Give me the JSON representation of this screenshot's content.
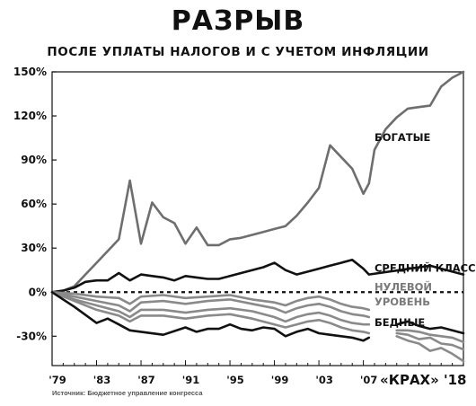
{
  "chart_data": {
    "type": "line",
    "title": "РАЗРЫВ",
    "subtitle": "ПОСЛЕ УПЛАТЫ НАЛОГОВ И С УЧЕТОМ ИНФЛЯЦИИ",
    "xlabel": "",
    "ylabel": "",
    "xlim": [
      1979,
      2016
    ],
    "ylim": [
      -50,
      150
    ],
    "y_ticks": [
      150,
      120,
      90,
      60,
      30,
      0,
      -30
    ],
    "y_tick_labels": [
      "150%",
      "120%",
      "90%",
      "60%",
      "30%",
      "0%",
      "-30%"
    ],
    "x_ticks": [
      1979,
      1983,
      1987,
      1991,
      1995,
      1999,
      2003,
      2007
    ],
    "x_tick_labels": [
      "'79",
      "'83",
      "'87",
      "'91",
      "'95",
      "'99",
      "'03",
      "'07"
    ],
    "zero_line": "dashed",
    "grid": false,
    "source": "Источник: Бюджетное управление конгресса",
    "credit": "«КРАХ» '18",
    "series": [
      {
        "name": "БОГАТЫЕ",
        "color": "#6e6e6e",
        "x": [
          1979,
          1980,
          1981,
          1982,
          1983,
          1984,
          1985,
          1986,
          1987,
          1988,
          1989,
          1990,
          1991,
          1992,
          1993,
          1994,
          1995,
          1996,
          1997,
          1998,
          1999,
          2000,
          2001,
          2002,
          2003,
          2004,
          2005,
          2006,
          2007,
          2007.5,
          2008,
          2009,
          2010,
          2011,
          2012,
          2013,
          2014,
          2015,
          2016
        ],
        "y": [
          0,
          1,
          4,
          12,
          20,
          28,
          36,
          76,
          33,
          61,
          51,
          47,
          33,
          44,
          32,
          32,
          36,
          37,
          39,
          41,
          43,
          45,
          52,
          61,
          71,
          100,
          92,
          84,
          67,
          74,
          97,
          111,
          119,
          125,
          126,
          127,
          140,
          146,
          150
        ]
      },
      {
        "name": "СРЕДНИЙ КЛАСС",
        "color": "#111111",
        "x": [
          1979,
          1980,
          1981,
          1982,
          1983,
          1984,
          1985,
          1986,
          1987,
          1988,
          1989,
          1990,
          1991,
          1992,
          1993,
          1994,
          1995,
          1996,
          1997,
          1998,
          1999,
          2000,
          2001,
          2002,
          2003,
          2004,
          2005,
          2006,
          2007,
          2007.5,
          2013,
          2014,
          2015,
          2016
        ],
        "y": [
          0,
          1,
          3,
          7,
          8,
          8,
          13,
          8,
          12,
          11,
          10,
          8,
          11,
          10,
          9,
          9,
          11,
          13,
          15,
          17,
          20,
          15,
          12,
          14,
          16,
          18,
          20,
          22,
          16,
          12,
          18,
          16,
          14,
          12
        ]
      },
      {
        "name": "НУЛЕВОЙ УРОВЕНЬ",
        "color": "#8a8a8a",
        "x": [
          1979,
          1981,
          1983,
          1985,
          1986,
          1987,
          1989,
          1991,
          1993,
          1995,
          1997,
          1999,
          2000,
          2001,
          2002,
          2003,
          2004,
          2005,
          2006,
          2007,
          2007.5
        ],
        "y": [
          0,
          -1,
          -3,
          -4,
          -8,
          -3,
          -2,
          -4,
          -3,
          -2,
          -5,
          -7,
          -9,
          -6,
          -4,
          -3,
          -5,
          -8,
          -10,
          -11,
          -12
        ]
      },
      {
        "name": "НУЛЕВОЙ УРОВЕНЬ (2)",
        "color": "#8a8a8a",
        "x": [
          1979,
          1981,
          1983,
          1985,
          1986,
          1987,
          1989,
          1991,
          1993,
          1995,
          1997,
          1999,
          2000,
          2001,
          2002,
          2003,
          2004,
          2005,
          2006,
          2007,
          2007.5
        ],
        "y": [
          0,
          -3,
          -6,
          -9,
          -13,
          -7,
          -6,
          -8,
          -6,
          -5,
          -8,
          -11,
          -14,
          -11,
          -9,
          -8,
          -10,
          -13,
          -15,
          -16,
          -17
        ]
      },
      {
        "name": "НУЛЕВОЙ УРОВЕНЬ (3)",
        "color": "#8a8a8a",
        "x": [
          1979,
          1981,
          1983,
          1985,
          1986,
          1987,
          1989,
          1991,
          1993,
          1995,
          1997,
          1999,
          2000,
          2001,
          2002,
          2003,
          2004,
          2005,
          2006,
          2007,
          2007.5
        ],
        "y": [
          0,
          -5,
          -9,
          -13,
          -17,
          -12,
          -12,
          -14,
          -12,
          -11,
          -13,
          -17,
          -20,
          -17,
          -15,
          -14,
          -16,
          -19,
          -21,
          -22,
          -22
        ]
      },
      {
        "name": "БЕДНЫЕ",
        "color": "#8a8a8a",
        "x": [
          1979,
          1981,
          1983,
          1985,
          1986,
          1987,
          1989,
          1991,
          1993,
          1995,
          1997,
          1999,
          2000,
          2001,
          2002,
          2003,
          2004,
          2005,
          2006,
          2007,
          2007.5
        ],
        "y": [
          0,
          -6,
          -12,
          -16,
          -20,
          -16,
          -16,
          -18,
          -16,
          -15,
          -18,
          -22,
          -24,
          -22,
          -20,
          -19,
          -21,
          -24,
          -26,
          -27,
          -28
        ]
      },
      {
        "name": "БЕДНЫЕ (2)",
        "color": "#111111",
        "x": [
          1979,
          1981,
          1983,
          1984,
          1985,
          1986,
          1987,
          1989,
          1991,
          1992,
          1993,
          1994,
          1995,
          1996,
          1997,
          1998,
          1999,
          2000,
          2001,
          2002,
          2003,
          2004,
          2005,
          2006,
          2007,
          2007.5
        ],
        "y": [
          0,
          -10,
          -21,
          -18,
          -22,
          -26,
          -27,
          -29,
          -24,
          -27,
          -25,
          -25,
          -22,
          -25,
          -26,
          -24,
          -25,
          -30,
          -27,
          -25,
          -28,
          -29,
          -30,
          -31,
          -33,
          -31
        ]
      },
      {
        "name": "right-1",
        "color": "#111111",
        "x": [
          2010,
          2011,
          2012,
          2013,
          2014,
          2015,
          2016
        ],
        "y": [
          -22,
          -20,
          -23,
          -25,
          -24,
          -26,
          -28
        ]
      },
      {
        "name": "right-2",
        "color": "#8a8a8a",
        "x": [
          2010,
          2011,
          2012,
          2013,
          2014,
          2015,
          2016
        ],
        "y": [
          -26,
          -26,
          -27,
          -29,
          -30,
          -31,
          -34
        ]
      },
      {
        "name": "right-3",
        "color": "#8a8a8a",
        "x": [
          2010,
          2011,
          2012,
          2013,
          2014,
          2015,
          2016
        ],
        "y": [
          -28,
          -29,
          -32,
          -31,
          -35,
          -36,
          -39
        ]
      },
      {
        "name": "right-4",
        "color": "#8a8a8a",
        "x": [
          2010,
          2011,
          2012,
          2013,
          2014,
          2015,
          2016
        ],
        "y": [
          -30,
          -33,
          -35,
          -40,
          -38,
          -42,
          -47
        ]
      }
    ],
    "labels": [
      {
        "text": "БОГАТЫЕ",
        "x": 2008,
        "y": 103,
        "color": "#111111"
      },
      {
        "text": "СРЕДНИЙ КЛАСС",
        "x": 2008,
        "y": 14,
        "color": "#111111"
      },
      {
        "text": "НУЛЕВОЙ",
        "x": 2008,
        "y": 1,
        "color": "#7a7a7a"
      },
      {
        "text": "УРОВЕНЬ",
        "x": 2008,
        "y": -9,
        "color": "#7a7a7a"
      },
      {
        "text": "БЕДНЫЕ",
        "x": 2008,
        "y": -23,
        "color": "#111111"
      }
    ]
  }
}
